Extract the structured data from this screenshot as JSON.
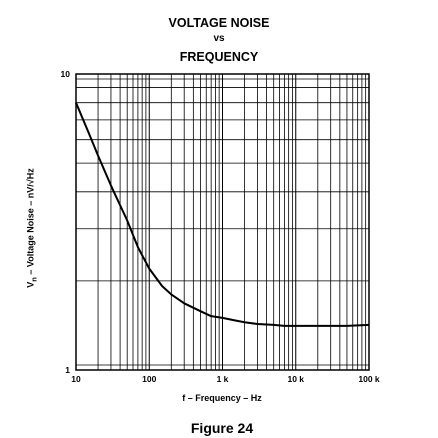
{
  "chart_data": {
    "type": "line",
    "title_lines": [
      "VOLTAGE NOISE",
      "vs",
      "FREQUENCY"
    ],
    "xlabel": "f – Frequency – Hz",
    "ylabel_main": "V",
    "ylabel_sub": "n",
    "ylabel_rest": " – Voltage Noise – nV/√Hz",
    "x_scale": "log",
    "y_scale": "log",
    "xlim": [
      10,
      100000
    ],
    "ylim": [
      1,
      10
    ],
    "x_ticks": [
      {
        "value": 10,
        "label": "10"
      },
      {
        "value": 100,
        "label": "100"
      },
      {
        "value": 1000,
        "label": "1 k"
      },
      {
        "value": 10000,
        "label": "10 k"
      },
      {
        "value": 100000,
        "label": "100 k"
      }
    ],
    "y_ticks": [
      {
        "value": 1,
        "label": "1"
      },
      {
        "value": 10,
        "label": "10"
      }
    ],
    "grid": true,
    "series": [
      {
        "x": [
          10,
          15,
          20,
          30,
          50,
          70,
          100,
          150,
          200,
          300,
          500,
          700,
          1000,
          1500,
          2000,
          3000,
          5000,
          7000,
          10000,
          20000,
          50000,
          100000
        ],
        "y": [
          8.0,
          6.3,
          5.3,
          4.2,
          3.2,
          2.6,
          2.2,
          1.92,
          1.8,
          1.68,
          1.58,
          1.52,
          1.5,
          1.47,
          1.45,
          1.43,
          1.42,
          1.41,
          1.41,
          1.41,
          1.41,
          1.42
        ]
      }
    ]
  },
  "figure_caption": "Figure 24"
}
